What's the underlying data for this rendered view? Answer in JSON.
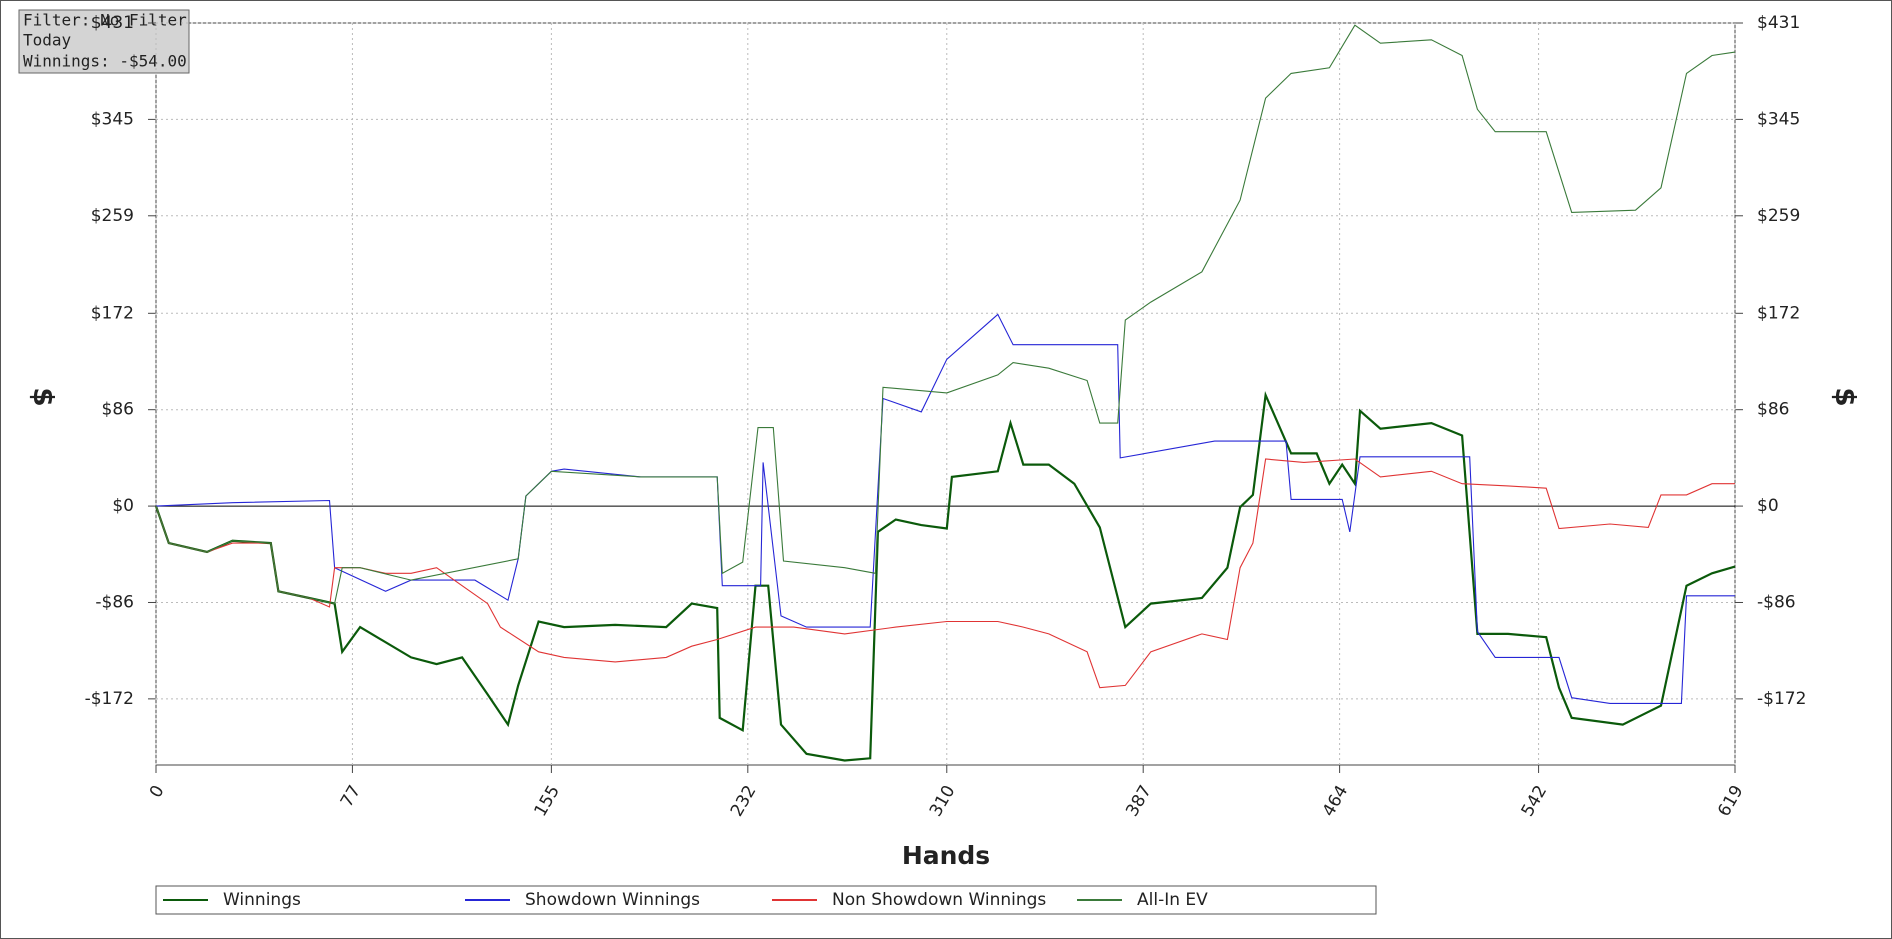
{
  "chart_data": {
    "type": "line",
    "xlabel": "Hands",
    "ylabel": "$",
    "y2label": "$",
    "xlim": [
      0,
      619
    ],
    "xticks": [
      0,
      77,
      155,
      232,
      310,
      387,
      464,
      542,
      619
    ],
    "ylim": [
      -231,
      431
    ],
    "yticks": [
      {
        "value": -172,
        "label": "-$172"
      },
      {
        "value": -86,
        "label": "-$86"
      },
      {
        "value": 0,
        "label": "$0"
      },
      {
        "value": 86,
        "label": "$86"
      },
      {
        "value": 172,
        "label": "$172"
      },
      {
        "value": 259,
        "label": "$259"
      },
      {
        "value": 345,
        "label": "$345"
      },
      {
        "value": 431,
        "label": "$431"
      }
    ],
    "y2lim": [
      -231,
      431
    ],
    "y2ticks": [
      {
        "value": -172,
        "label": "-$172"
      },
      {
        "value": -86,
        "label": "-$86"
      },
      {
        "value": 0,
        "label": "$0"
      },
      {
        "value": 86,
        "label": "$86"
      },
      {
        "value": 172,
        "label": "$172"
      },
      {
        "value": 259,
        "label": "$259"
      },
      {
        "value": 345,
        "label": "$345"
      },
      {
        "value": 431,
        "label": "$431"
      }
    ],
    "grid": true,
    "series": [
      {
        "name": "Winnings",
        "color": "#0b5a0b",
        "x": [
          0,
          5,
          20,
          30,
          45,
          48,
          60,
          70,
          73,
          80,
          100,
          110,
          120,
          130,
          138,
          142,
          150,
          160,
          180,
          200,
          210,
          220,
          221,
          230,
          235,
          240,
          245,
          255,
          270,
          280,
          283,
          290,
          300,
          310,
          312,
          330,
          335,
          340,
          350,
          360,
          370,
          380,
          390,
          410,
          420,
          425,
          430,
          435,
          445,
          455,
          460,
          465,
          470,
          472,
          480,
          500,
          512,
          518,
          530,
          545,
          550,
          555,
          575,
          590,
          600,
          610,
          619
        ],
        "values": [
          0,
          -33,
          -41,
          -31,
          -33,
          -76,
          -82,
          -87,
          -130,
          -108,
          -135,
          -141,
          -135,
          -168,
          -195,
          -160,
          -103,
          -108,
          -106,
          -108,
          -87,
          -91,
          -189,
          -200,
          -71,
          -71,
          -195,
          -221,
          -227,
          -225,
          -23,
          -12,
          -17,
          -20,
          26,
          31,
          74,
          37,
          37,
          20,
          -19,
          -108,
          -87,
          -82,
          -55,
          -1,
          10,
          99,
          47,
          47,
          20,
          37,
          20,
          85,
          69,
          74,
          63,
          -114,
          -114,
          -117,
          -162,
          -189,
          -195,
          -178,
          -71,
          -60,
          -54
        ]
      },
      {
        "name": "Showdown Winnings",
        "color": "#2626d6",
        "x": [
          0,
          30,
          68,
          70,
          90,
          100,
          125,
          138,
          142,
          145,
          155,
          160,
          190,
          220,
          222,
          237,
          238,
          245,
          255,
          280,
          285,
          300,
          310,
          330,
          336,
          377,
          378,
          415,
          443,
          445,
          465,
          468,
          472,
          515,
          518,
          525,
          550,
          555,
          570,
          598,
          600,
          619
        ],
        "values": [
          0,
          3,
          5,
          -55,
          -76,
          -66,
          -66,
          -84,
          -47,
          9,
          31,
          33,
          26,
          26,
          -71,
          -71,
          39,
          -98,
          -108,
          -108,
          96,
          84,
          131,
          171,
          144,
          144,
          43,
          58,
          58,
          6,
          6,
          -23,
          44,
          44,
          -112,
          -135,
          -135,
          -171,
          -176,
          -176,
          -80,
          -80
        ]
      },
      {
        "name": "Non Showdown Winnings",
        "color": "#e03434",
        "x": [
          0,
          5,
          20,
          30,
          45,
          48,
          60,
          68,
          70,
          80,
          90,
          100,
          110,
          120,
          130,
          135,
          150,
          160,
          180,
          200,
          210,
          220,
          235,
          250,
          270,
          290,
          310,
          330,
          340,
          350,
          365,
          370,
          380,
          390,
          410,
          420,
          425,
          430,
          435,
          450,
          470,
          480,
          500,
          512,
          530,
          545,
          550,
          570,
          585,
          590,
          600,
          610,
          619
        ],
        "values": [
          0,
          -33,
          -41,
          -33,
          -33,
          -76,
          -82,
          -90,
          -55,
          -55,
          -60,
          -60,
          -55,
          -71,
          -87,
          -108,
          -130,
          -135,
          -139,
          -135,
          -125,
          -119,
          -108,
          -108,
          -114,
          -108,
          -103,
          -103,
          -108,
          -114,
          -130,
          -162,
          -160,
          -130,
          -114,
          -119,
          -55,
          -33,
          42,
          39,
          42,
          26,
          31,
          20,
          18,
          16,
          -20,
          -16,
          -19,
          10,
          10,
          20,
          20
        ]
      },
      {
        "name": "All-In EV",
        "color": "#3a7a3a",
        "x": [
          0,
          5,
          20,
          30,
          45,
          48,
          60,
          70,
          73,
          80,
          100,
          142,
          145,
          155,
          190,
          220,
          222,
          230,
          236,
          242,
          246,
          270,
          282,
          285,
          310,
          330,
          336,
          350,
          365,
          370,
          377,
          380,
          390,
          410,
          425,
          435,
          445,
          460,
          470,
          480,
          500,
          512,
          518,
          525,
          545,
          555,
          580,
          590,
          600,
          610,
          619
        ],
        "values": [
          0,
          -33,
          -41,
          -31,
          -33,
          -76,
          -82,
          -87,
          -55,
          -55,
          -66,
          -47,
          9,
          31,
          26,
          26,
          -60,
          -50,
          70,
          70,
          -49,
          -55,
          -60,
          106,
          101,
          117,
          128,
          123,
          112,
          74,
          74,
          166,
          182,
          209,
          273,
          364,
          386,
          391,
          429,
          413,
          416,
          402,
          354,
          334,
          334,
          262,
          264,
          284,
          386,
          402,
          405
        ]
      }
    ]
  },
  "info_box": {
    "filter": "Filter: No Filter",
    "period": "Today",
    "winnings": "Winnings: -$54.00"
  }
}
